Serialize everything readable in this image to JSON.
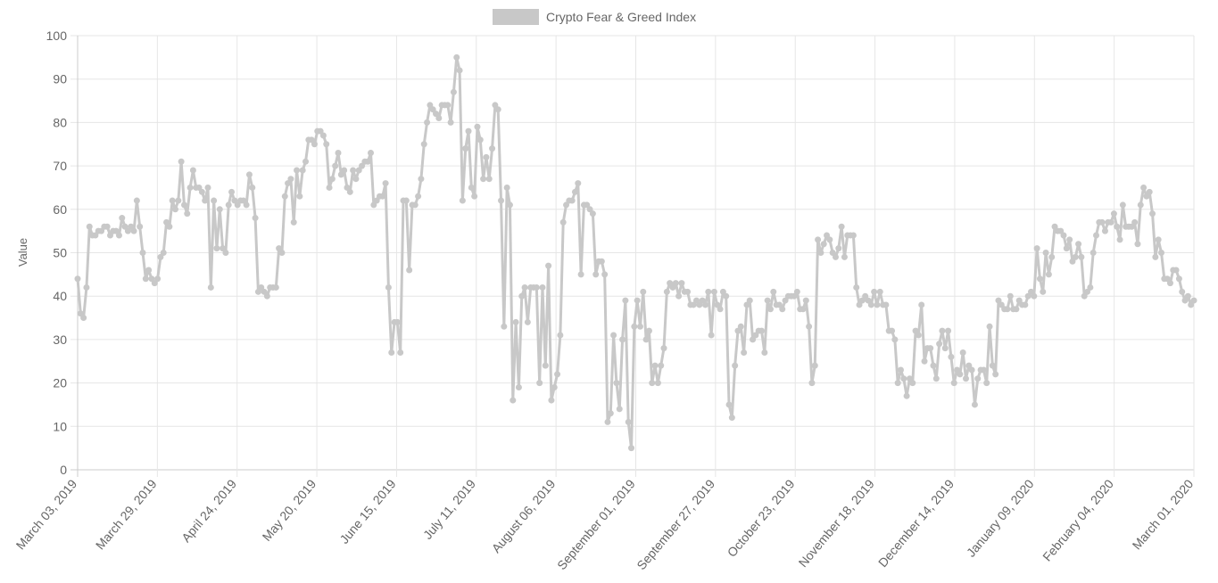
{
  "chart_data": {
    "type": "line",
    "legend": {
      "position": "top",
      "label": "Crypto Fear & Greed Index"
    },
    "ylabel": "Value",
    "xlabel": "",
    "ylim": [
      0,
      100
    ],
    "ytick_step": 10,
    "grid": true,
    "colors": {
      "line": "#c8c8c8",
      "point": "#c8c8c8",
      "grid": "#e6e6e6",
      "axis": "#cccccc",
      "text": "#666666"
    },
    "x_start": "2019-03-03",
    "x_end": "2020-03-01",
    "x_tick_labels": [
      "March 03, 2019",
      "March 29, 2019",
      "April 24, 2019",
      "May 20, 2019",
      "June 15, 2019",
      "July 11, 2019",
      "August 06, 2019",
      "September 01, 2019",
      "September 27, 2019",
      "October 23, 2019",
      "November 18, 2019",
      "December 14, 2019",
      "January 09, 2020",
      "February 04, 2020",
      "March 01, 2020"
    ],
    "series": [
      {
        "name": "Crypto Fear & Greed Index",
        "values": [
          44,
          36,
          35,
          42,
          56,
          54,
          54,
          55,
          55,
          56,
          56,
          54,
          55,
          55,
          54,
          58,
          56,
          55,
          56,
          55,
          62,
          56,
          50,
          44,
          46,
          44,
          43,
          44,
          49,
          50,
          57,
          56,
          62,
          60,
          62,
          71,
          61,
          59,
          65,
          69,
          65,
          65,
          64,
          62,
          65,
          42,
          62,
          51,
          60,
          51,
          50,
          61,
          64,
          62,
          61,
          62,
          62,
          61,
          68,
          65,
          58,
          41,
          42,
          41,
          40,
          42,
          42,
          42,
          51,
          50,
          63,
          66,
          67,
          57,
          69,
          63,
          69,
          71,
          76,
          76,
          75,
          78,
          78,
          77,
          75,
          65,
          67,
          70,
          73,
          68,
          69,
          65,
          64,
          69,
          67,
          69,
          70,
          71,
          71,
          73,
          61,
          62,
          63,
          63,
          66,
          42,
          27,
          34,
          34,
          27,
          62,
          62,
          46,
          61,
          61,
          63,
          67,
          75,
          80,
          84,
          83,
          82,
          81,
          84,
          84,
          84,
          80,
          87,
          95,
          92,
          62,
          74,
          78,
          65,
          63,
          79,
          76,
          67,
          72,
          67,
          74,
          84,
          83,
          62,
          33,
          65,
          61,
          16,
          34,
          19,
          40,
          42,
          34,
          42,
          42,
          42,
          20,
          42,
          24,
          47,
          16,
          19,
          22,
          31,
          57,
          61,
          62,
          62,
          64,
          66,
          45,
          61,
          61,
          60,
          59,
          45,
          48,
          48,
          45,
          11,
          13,
          31,
          20,
          14,
          30,
          39,
          11,
          5,
          33,
          39,
          33,
          41,
          30,
          32,
          20,
          24,
          20,
          24,
          28,
          41,
          43,
          42,
          43,
          40,
          43,
          41,
          41,
          38,
          38,
          39,
          38,
          39,
          38,
          41,
          31,
          41,
          38,
          37,
          41,
          40,
          15,
          12,
          24,
          32,
          33,
          27,
          38,
          39,
          30,
          31,
          32,
          32,
          27,
          39,
          37,
          41,
          38,
          38,
          37,
          39,
          40,
          40,
          40,
          41,
          37,
          37,
          39,
          33,
          20,
          24,
          53,
          50,
          52,
          54,
          53,
          50,
          49,
          51,
          56,
          49,
          54,
          54,
          54,
          42,
          38,
          39,
          40,
          39,
          38,
          41,
          38,
          41,
          38,
          38,
          32,
          32,
          30,
          20,
          23,
          21,
          17,
          21,
          20,
          32,
          31,
          38,
          25,
          28,
          28,
          24,
          21,
          29,
          32,
          28,
          32,
          26,
          20,
          23,
          22,
          27,
          21,
          24,
          23,
          15,
          21,
          23,
          23,
          20,
          33,
          24,
          22,
          39,
          38,
          37,
          37,
          40,
          37,
          37,
          39,
          38,
          38,
          40,
          41,
          40,
          51,
          44,
          41,
          50,
          45,
          49,
          56,
          55,
          55,
          54,
          51,
          53,
          48,
          49,
          52,
          49,
          40,
          41,
          42,
          50,
          54,
          57,
          57,
          55,
          57,
          57,
          59,
          56,
          53,
          61,
          56,
          56,
          56,
          57,
          52,
          61,
          65,
          63,
          64,
          59,
          49,
          53,
          50,
          44,
          44,
          43,
          46,
          46,
          44,
          41,
          39,
          40,
          38,
          39
        ]
      }
    ]
  }
}
